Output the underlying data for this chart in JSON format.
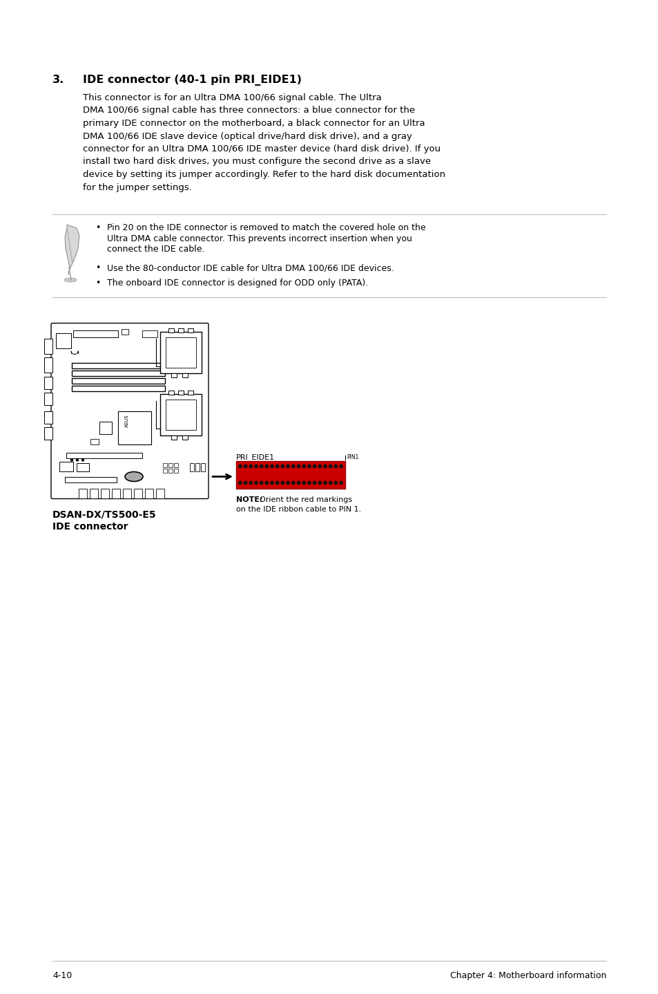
{
  "bg_color": "#ffffff",
  "section_number": "3.",
  "section_title": "IDE connector (40-1 pin PRI_EIDE1)",
  "body_text_lines": [
    "This connector is for an Ultra DMA 100/66 signal cable. The Ultra",
    "DMA 100/66 signal cable has three connectors: a blue connector for the",
    "primary IDE connector on the motherboard, a black connector for an Ultra",
    "DMA 100/66 IDE slave device (optical drive/hard disk drive), and a gray",
    "connector for an Ultra DMA 100/66 IDE master device (hard disk drive). If you",
    "install two hard disk drives, you must configure the second drive as a slave",
    "device by setting its jumper accordingly. Refer to the hard disk documentation",
    "for the jumper settings."
  ],
  "note_bullet1_lines": [
    "Pin 20 on the IDE connector is removed to match the covered hole on the",
    "Ultra DMA cable connector. This prevents incorrect insertion when you",
    "connect the IDE cable."
  ],
  "note_bullet2": "Use the 80-conductor IDE cable for Ultra DMA 100/66 IDE devices.",
  "note_bullet3": "The onboard IDE connector is designed for ODD only (PATA).",
  "connector_label": "PRI_EIDE1",
  "pin1_label": "PIN1",
  "note_bold": "NOTE:",
  "note_rest": "Orient the red markings",
  "note_rest2": "on the IDE ribbon cable to PIN 1.",
  "caption_line1": "DSAN-DX/TS500-E5",
  "caption_line2": "IDE connector",
  "footer_left": "4-10",
  "footer_right": "Chapter 4: Motherboard information",
  "connector_color": "#cc0000",
  "rule_color": "#bbbbbb",
  "text_color": "#000000"
}
